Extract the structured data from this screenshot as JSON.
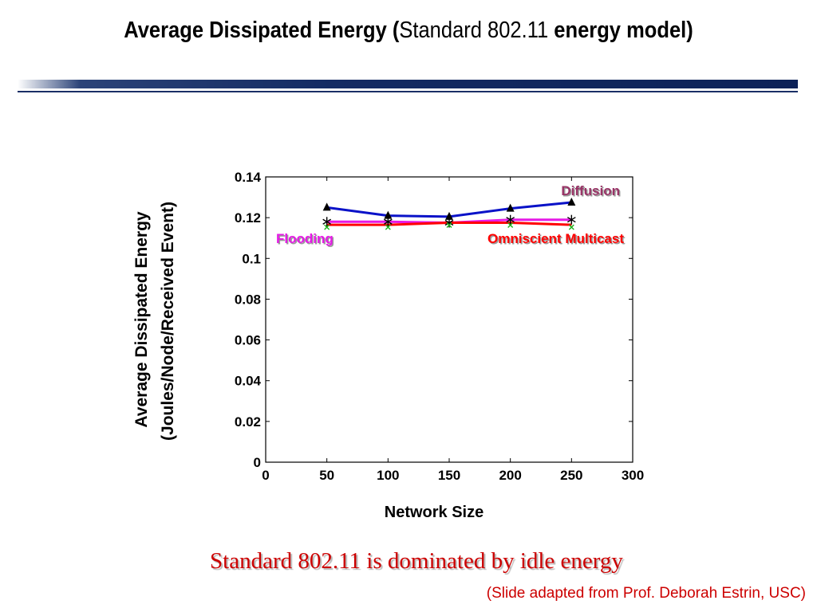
{
  "slide": {
    "title_part1": "Average Dissipated Energy (",
    "title_part2": "Standard 802.11",
    "title_part3": " energy model)",
    "takeaway": "Standard 802.11 is dominated by idle energy",
    "credit": "(Slide adapted from Prof. Deborah Estrin, USC)",
    "accent_color": "#cc0000",
    "bar_color": "#142b63"
  },
  "chart_data": {
    "type": "line",
    "title": "",
    "xlabel": "Network Size",
    "ylabel_line1": "Average Dissipated Energy",
    "ylabel_line2": "(Joules/Node/Received Event)",
    "xlim": [
      0,
      300
    ],
    "ylim": [
      0,
      0.14
    ],
    "xticks": [
      0,
      50,
      100,
      150,
      200,
      250,
      300
    ],
    "xtick_labels": [
      "0",
      "50",
      "100",
      "150",
      "200",
      "250",
      "300"
    ],
    "yticks": [
      0,
      0.02,
      0.04,
      0.06,
      0.08,
      0.1,
      0.12,
      0.14
    ],
    "ytick_labels": [
      "0",
      "0.02",
      "0.04",
      "0.06",
      "0.08",
      "0.1",
      "0.12",
      "0.14"
    ],
    "grid": false,
    "x": [
      50,
      100,
      150,
      200,
      250
    ],
    "series": [
      {
        "name": "Diffusion",
        "values": [
          0.125,
          0.121,
          0.1205,
          0.1245,
          0.1275
        ],
        "color": "#0a12c8",
        "marker": "triangle",
        "marker_color": "#000000"
      },
      {
        "name": "Flooding",
        "values": [
          0.118,
          0.118,
          0.1175,
          0.119,
          0.119
        ],
        "color": "#e619e6",
        "marker": "asterisk",
        "marker_color": "#000000"
      },
      {
        "name": "Omniscient Multicast",
        "values": [
          0.1165,
          0.1165,
          0.1175,
          0.1175,
          0.1165
        ],
        "color": "#ff0000",
        "marker": "x",
        "marker_color": "#17b317"
      }
    ],
    "annotations": [
      {
        "text": "Diffusion",
        "color": "#993366",
        "place": "above line, right end"
      },
      {
        "text": "Flooding",
        "color": "#e619e6",
        "place": "below line, left end"
      },
      {
        "text": "Omniscient Multicast",
        "color": "#ff0000",
        "place": "below line, right end"
      }
    ]
  }
}
